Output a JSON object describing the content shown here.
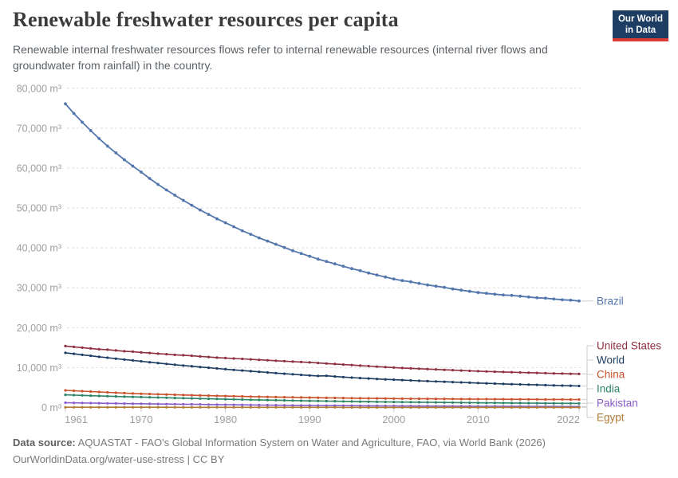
{
  "header": {
    "title": "Renewable freshwater resources per capita",
    "subtitle": "Renewable internal freshwater resources flows refer to internal renewable resources (internal river flows and groundwater from rainfall) in the country.",
    "logo": {
      "line1": "Our World",
      "line2": "in Data",
      "bg_color": "#1d3d63",
      "accent_color": "#d93a34"
    }
  },
  "footer": {
    "datasource_label": "Data source:",
    "datasource_text": " AQUASTAT - FAO's Global Information System on Water and Agriculture, FAO, via World Bank (2026)",
    "url_text": "OurWorldinData.org/water-use-stress",
    "license_text": " | CC BY"
  },
  "chart_data": {
    "type": "line",
    "title": "Renewable freshwater resources per capita",
    "unit": "m³",
    "xlim": [
      1961,
      2022
    ],
    "ylim": [
      0,
      80000
    ],
    "x_ticks": [
      1961,
      1970,
      1980,
      1990,
      2000,
      2010,
      2022
    ],
    "y_ticks": [
      0,
      10000,
      20000,
      30000,
      40000,
      50000,
      60000,
      70000,
      80000
    ],
    "y_tick_labels": [
      "0 m³",
      "10,000 m³",
      "20,000 m³",
      "30,000 m³",
      "40,000 m³",
      "50,000 m³",
      "60,000 m³",
      "70,000 m³",
      "80,000 m³"
    ],
    "grid": "dashed-horizontal",
    "grid_color": "#dedede",
    "axis_text_color": "#9e9e9e",
    "connector_color": "#d6d6d6",
    "legend_position": "right-end-labels",
    "years": [
      1961,
      1962,
      1963,
      1964,
      1965,
      1966,
      1967,
      1968,
      1969,
      1970,
      1971,
      1972,
      1973,
      1974,
      1975,
      1976,
      1977,
      1978,
      1979,
      1980,
      1981,
      1982,
      1983,
      1984,
      1985,
      1986,
      1987,
      1988,
      1989,
      1990,
      1991,
      1992,
      1993,
      1994,
      1995,
      1996,
      1997,
      1998,
      1999,
      2000,
      2001,
      2002,
      2003,
      2004,
      2005,
      2006,
      2007,
      2008,
      2009,
      2010,
      2011,
      2012,
      2013,
      2014,
      2015,
      2016,
      2017,
      2018,
      2019,
      2020,
      2021,
      2022
    ],
    "series": [
      {
        "name": "Brazil",
        "color": "#5377ad",
        "values": [
          76100,
          73700,
          71500,
          69400,
          67400,
          65500,
          63800,
          62100,
          60500,
          59000,
          57400,
          55900,
          54500,
          53200,
          51900,
          50700,
          49500,
          48400,
          47300,
          46300,
          45300,
          44300,
          43400,
          42500,
          41700,
          40900,
          40100,
          39300,
          38600,
          37900,
          37200,
          36600,
          36000,
          35400,
          34800,
          34300,
          33700,
          33200,
          32700,
          32200,
          31800,
          31500,
          31100,
          30700,
          30400,
          30100,
          29700,
          29400,
          29100,
          28800,
          28600,
          28400,
          28200,
          28100,
          27900,
          27700,
          27500,
          27400,
          27200,
          27000,
          26900,
          26700
        ]
      },
      {
        "name": "United States",
        "color": "#8f3040",
        "values": [
          15400,
          15200,
          15000,
          14800,
          14600,
          14500,
          14300,
          14100,
          14000,
          13800,
          13650,
          13500,
          13350,
          13200,
          13100,
          12950,
          12800,
          12650,
          12500,
          12400,
          12280,
          12170,
          12060,
          11940,
          11830,
          11720,
          11610,
          11500,
          11400,
          11300,
          11160,
          11030,
          10900,
          10770,
          10640,
          10510,
          10380,
          10250,
          10120,
          10000,
          9900,
          9810,
          9720,
          9630,
          9540,
          9450,
          9360,
          9270,
          9180,
          9100,
          9030,
          8970,
          8910,
          8850,
          8790,
          8730,
          8670,
          8610,
          8550,
          8500,
          8450,
          8400
        ]
      },
      {
        "name": "World",
        "color": "#1d3d63",
        "values": [
          13700,
          13450,
          13200,
          12950,
          12700,
          12470,
          12240,
          12010,
          11790,
          11570,
          11350,
          11140,
          10930,
          10730,
          10530,
          10340,
          10150,
          9960,
          9780,
          9600,
          9430,
          9260,
          9100,
          8940,
          8780,
          8620,
          8470,
          8320,
          8170,
          8030,
          7900,
          7950,
          7760,
          7620,
          7490,
          7370,
          7260,
          7150,
          7050,
          6960,
          6870,
          6780,
          6690,
          6600,
          6520,
          6440,
          6360,
          6280,
          6200,
          6120,
          6050,
          5980,
          5910,
          5850,
          5790,
          5730,
          5670,
          5610,
          5550,
          5500,
          5450,
          5400
        ]
      },
      {
        "name": "China",
        "color": "#c9512c",
        "values": [
          4300,
          4190,
          4090,
          3990,
          3890,
          3790,
          3700,
          3610,
          3520,
          3440,
          3370,
          3310,
          3250,
          3190,
          3130,
          3080,
          3020,
          2970,
          2920,
          2870,
          2830,
          2780,
          2740,
          2700,
          2660,
          2620,
          2580,
          2550,
          2510,
          2480,
          2450,
          2420,
          2390,
          2370,
          2340,
          2320,
          2300,
          2280,
          2250,
          2230,
          2220,
          2200,
          2190,
          2170,
          2160,
          2150,
          2130,
          2120,
          2110,
          2100,
          2090,
          2080,
          2070,
          2060,
          2050,
          2040,
          2030,
          2020,
          2010,
          2010,
          2000,
          2000
        ]
      },
      {
        "name": "India",
        "color": "#2c8465",
        "values": [
          3170,
          3100,
          3030,
          2960,
          2900,
          2840,
          2780,
          2720,
          2660,
          2610,
          2550,
          2490,
          2440,
          2380,
          2330,
          2280,
          2230,
          2180,
          2130,
          2080,
          2030,
          1990,
          1940,
          1900,
          1860,
          1820,
          1780,
          1740,
          1700,
          1660,
          1630,
          1600,
          1570,
          1540,
          1510,
          1480,
          1450,
          1420,
          1390,
          1370,
          1350,
          1330,
          1310,
          1290,
          1270,
          1250,
          1230,
          1210,
          1190,
          1170,
          1160,
          1150,
          1130,
          1120,
          1110,
          1090,
          1080,
          1060,
          1050,
          1040,
          1030,
          1020
        ]
      },
      {
        "name": "Pakistan",
        "color": "#8a5dc8",
        "values": [
          1190,
          1160,
          1130,
          1100,
          1070,
          1040,
          1010,
          985,
          960,
          935,
          910,
          885,
          860,
          835,
          815,
          790,
          770,
          745,
          725,
          705,
          685,
          665,
          645,
          625,
          605,
          585,
          565,
          548,
          531,
          515,
          501,
          488,
          475,
          462,
          450,
          438,
          427,
          416,
          406,
          396,
          386,
          376,
          367,
          358,
          349,
          340,
          332,
          324,
          315,
          307,
          300,
          293,
          286,
          280,
          274,
          268,
          262,
          256,
          250,
          244,
          238,
          233
        ]
      },
      {
        "name": "Egypt",
        "color": "#b07d36",
        "values": [
          65,
          64,
          62,
          61,
          60,
          58,
          57,
          56,
          54,
          53,
          52,
          51,
          50,
          48,
          47,
          46,
          45,
          44,
          43,
          42,
          41,
          40,
          39,
          38,
          37,
          36,
          35,
          34,
          33,
          32,
          31,
          31,
          30,
          29,
          29,
          28,
          28,
          27,
          27,
          26,
          26,
          25,
          25,
          24,
          24,
          23,
          23,
          23,
          22,
          22,
          21,
          21,
          21,
          20,
          20,
          19,
          19,
          19,
          18,
          18,
          17,
          17
        ]
      }
    ]
  }
}
